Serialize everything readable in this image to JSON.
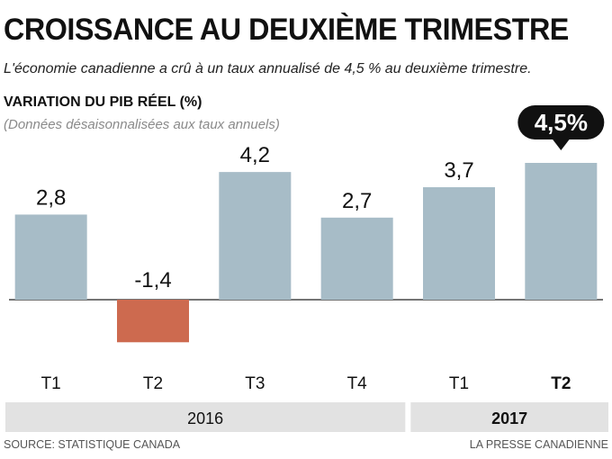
{
  "header": {
    "title": "CROISSANCE AU DEUXIÈME TRIMESTRE",
    "subtitle": "L'économie canadienne a crû à un taux annualisé de 4,5 % au deuxième trimestre."
  },
  "chart_data": {
    "type": "bar",
    "title": "VARIATION DU PIB RÉEL (%)",
    "ylabel_note": "(Données désaisonnalisées aux taux annuels)",
    "categories": [
      "T1",
      "T2",
      "T3",
      "T4",
      "T1",
      "T2"
    ],
    "values": [
      2.8,
      -1.4,
      4.2,
      2.7,
      3.7,
      4.5
    ],
    "value_labels": [
      "2,8",
      "-1,4",
      "4,2",
      "2,7",
      "3,7",
      "4,5%"
    ],
    "highlight_index": 5,
    "years": [
      {
        "label": "2016",
        "start": 0,
        "end": 3
      },
      {
        "label": "2017",
        "start": 4,
        "end": 5
      }
    ],
    "ylim": [
      -1.4,
      4.5
    ],
    "colors": {
      "positive": "#a7bcc7",
      "negative": "#cd6a4f",
      "callout": "#111111",
      "band": "#e2e2e2",
      "axis": "#222222"
    }
  },
  "footer": {
    "source": "SOURCE: STATISTIQUE CANADA",
    "credit": "LA PRESSE CANADIENNE"
  }
}
